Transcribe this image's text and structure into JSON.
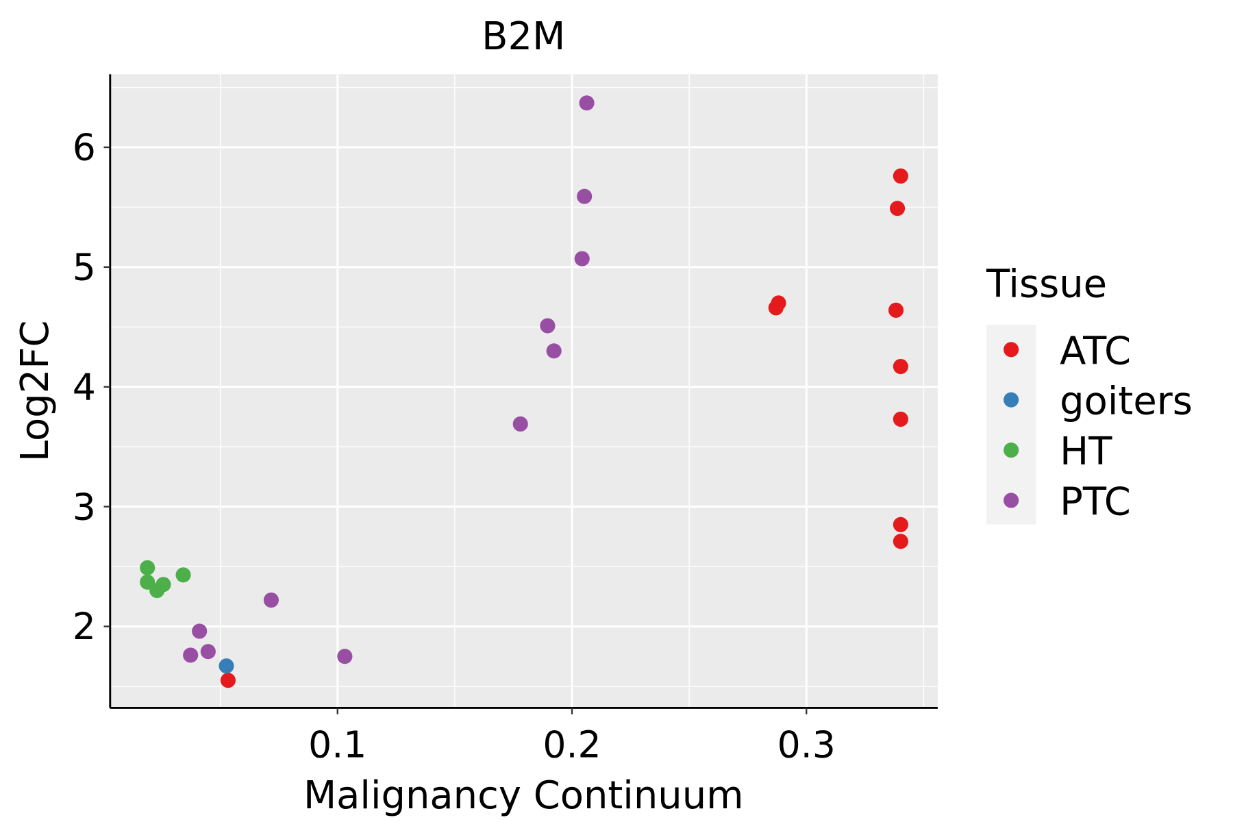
{
  "chart_data": {
    "type": "scatter",
    "title": "B2M",
    "xlabel": "Malignancy Continuum",
    "ylabel": "Log2FC",
    "xlim": [
      0.003,
      0.356
    ],
    "ylim": [
      1.32,
      6.61
    ],
    "xticks": [
      0.1,
      0.2,
      0.3
    ],
    "xtick_labels": [
      "0.1",
      "0.2",
      "0.3"
    ],
    "yticks": [
      2,
      3,
      4,
      5,
      6
    ],
    "ytick_labels": [
      "2",
      "3",
      "4",
      "5",
      "6"
    ],
    "grid": true,
    "legend": {
      "title": "Tissue",
      "position": "right"
    },
    "series": [
      {
        "name": "ATC",
        "color": "#E41A1C",
        "points": [
          [
            0.3402,
            5.76
          ],
          [
            0.3388,
            5.49
          ],
          [
            0.2881,
            4.7
          ],
          [
            0.287,
            4.66
          ],
          [
            0.3382,
            4.64
          ],
          [
            0.3402,
            4.17
          ],
          [
            0.3402,
            3.73
          ],
          [
            0.3402,
            2.85
          ],
          [
            0.3402,
            2.71
          ],
          [
            0.0533,
            1.55
          ]
        ]
      },
      {
        "name": "goiters",
        "color": "#377EB8",
        "points": [
          [
            0.0526,
            1.67
          ]
        ]
      },
      {
        "name": "HT",
        "color": "#4DAF4A",
        "points": [
          [
            0.0189,
            2.49
          ],
          [
            0.0189,
            2.37
          ],
          [
            0.023,
            2.3
          ],
          [
            0.0257,
            2.35
          ],
          [
            0.0342,
            2.43
          ]
        ]
      },
      {
        "name": "PTC",
        "color": "#984EA3",
        "points": [
          [
            0.2063,
            6.37
          ],
          [
            0.2053,
            5.59
          ],
          [
            0.2043,
            5.07
          ],
          [
            0.1896,
            4.51
          ],
          [
            0.1923,
            4.3
          ],
          [
            0.178,
            3.69
          ],
          [
            0.0717,
            2.22
          ],
          [
            0.0411,
            1.96
          ],
          [
            0.0373,
            1.76
          ],
          [
            0.0448,
            1.79
          ],
          [
            0.1031,
            1.75
          ]
        ]
      }
    ]
  }
}
